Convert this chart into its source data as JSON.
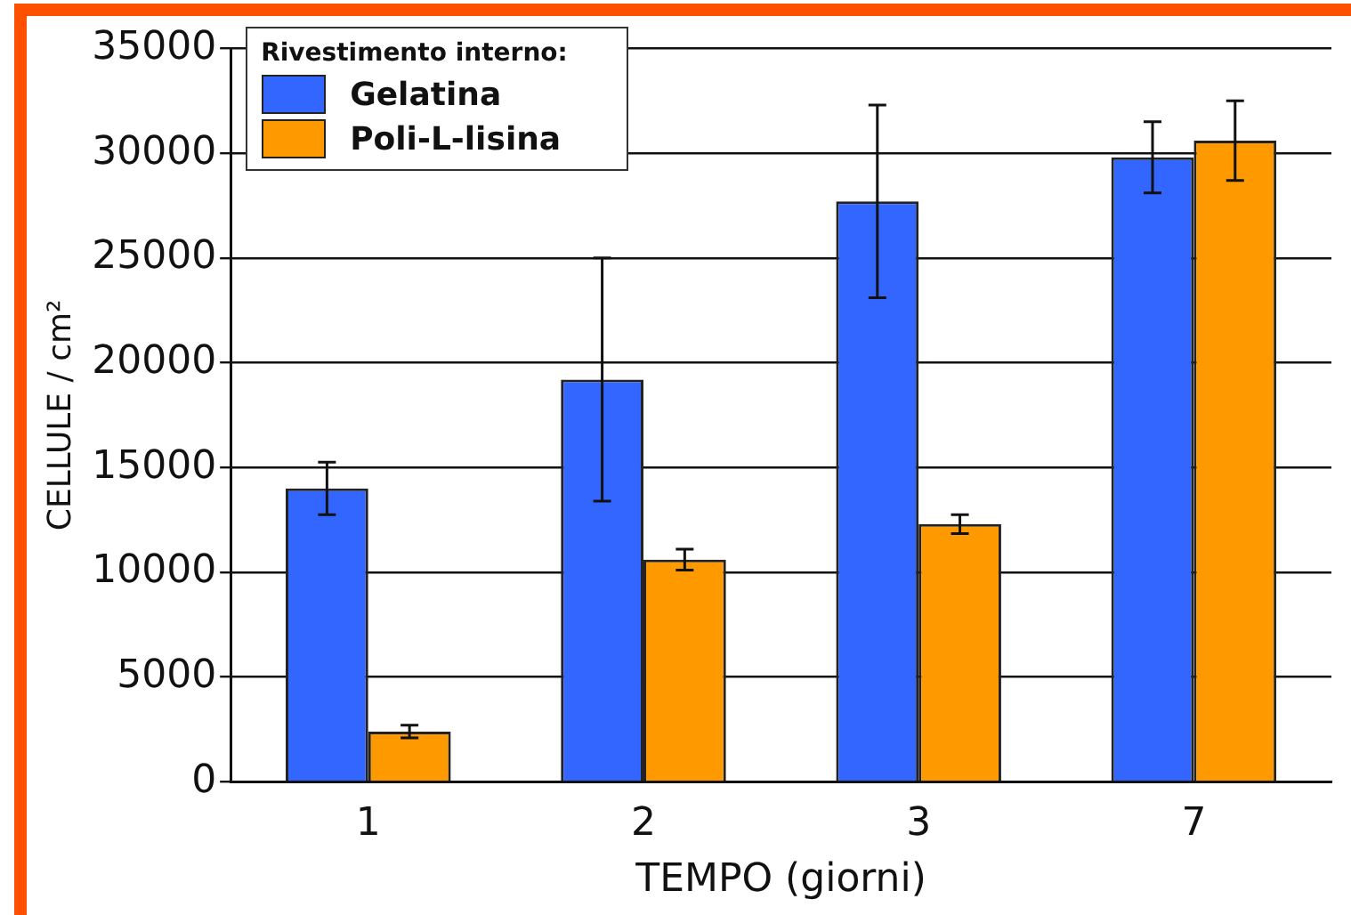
{
  "chart_data": {
    "type": "bar",
    "xlabel": "TEMPO (giorni)",
    "ylabel": "CELLULE / cm²",
    "legend_title": "Rivestimento interno:",
    "categories": [
      "1",
      "2",
      "3",
      "7"
    ],
    "series": [
      {
        "name": "Gelatina",
        "color": "#3366ff",
        "values": [
          14000,
          19200,
          27700,
          29800
        ],
        "errors": [
          1250,
          5800,
          4600,
          1700
        ]
      },
      {
        "name": "Poli-L-lisina",
        "color": "#ff9900",
        "values": [
          2400,
          10600,
          12300,
          30600
        ],
        "errors": [
          300,
          500,
          450,
          1900
        ]
      }
    ],
    "ylim": [
      0,
      35000
    ],
    "yticks": [
      0,
      5000,
      10000,
      15000,
      20000,
      25000,
      30000,
      35000
    ],
    "grid": "y",
    "legend": "top left"
  }
}
